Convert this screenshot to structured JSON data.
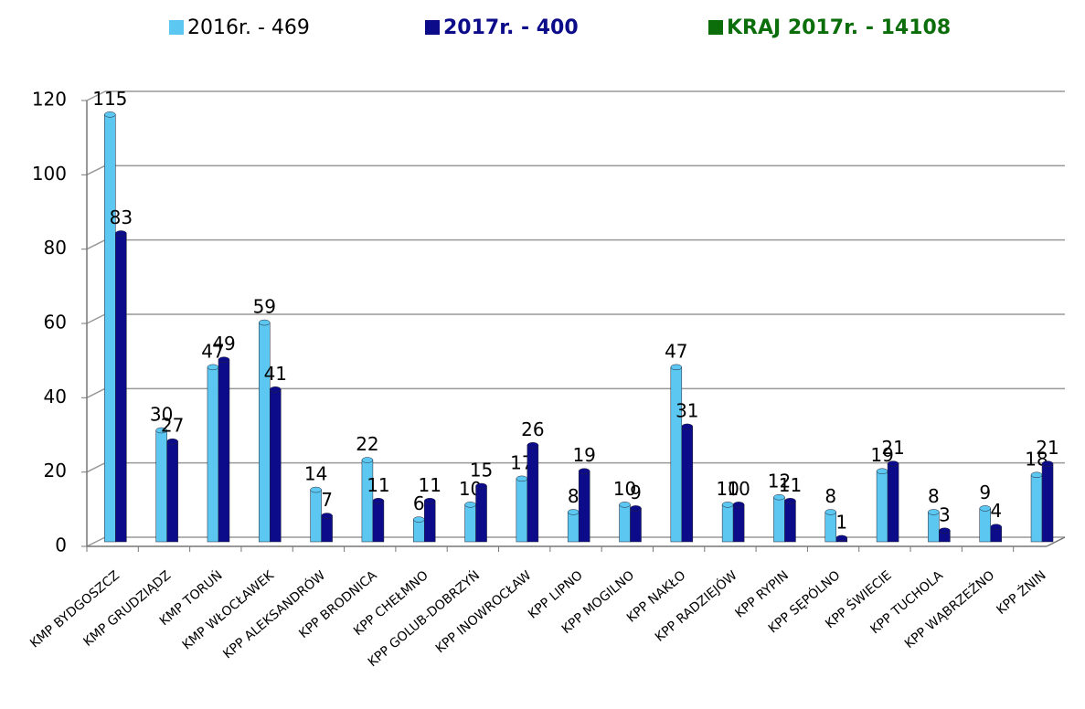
{
  "chart_data": {
    "type": "bar",
    "categories": [
      "KMP BYDGOSZCZ",
      "KMP GRUDZIĄDZ",
      "KMP TORUŃ",
      "KMP WŁOCŁAWEK",
      "KPP ALEKSANDRÓW",
      "KPP BRODNICA",
      "KPP CHEŁMNO",
      "KPP GOLUB-DOBRZYŃ",
      "KPP INOWROCŁAW",
      "KPP LIPNO",
      "KPP MOGILNO",
      "KPP NAKŁO",
      "KPP RADZIEJÓW",
      "KPP RYPIN",
      "KPP SĘPÓLNO",
      "KPP ŚWIECIE",
      "KPP TUCHOLA",
      "KPP WĄBRZEŹNO",
      "KPP ŻNIN"
    ],
    "series": [
      {
        "name": "2016r. - 469",
        "color": "#5cc8f2",
        "values": [
          115,
          30,
          47,
          59,
          14,
          22,
          6,
          10,
          17,
          8,
          10,
          47,
          10,
          12,
          8,
          19,
          8,
          9,
          18
        ]
      },
      {
        "name": "2017r. - 400",
        "color": "#0c0c8a",
        "values": [
          83,
          27,
          49,
          41,
          7,
          11,
          11,
          15,
          26,
          19,
          9,
          31,
          10,
          11,
          1,
          21,
          3,
          4,
          21
        ]
      },
      {
        "name": "KRAJ  2017r. - 14108",
        "color": "#0b6e0b",
        "values": [
          null,
          null,
          null,
          null,
          null,
          null,
          null,
          null,
          null,
          null,
          null,
          null,
          null,
          null,
          null,
          null,
          null,
          null,
          null
        ]
      }
    ],
    "ylim": [
      0,
      120
    ],
    "yticks": [
      0,
      20,
      40,
      60,
      80,
      100,
      120
    ],
    "grid": true
  }
}
